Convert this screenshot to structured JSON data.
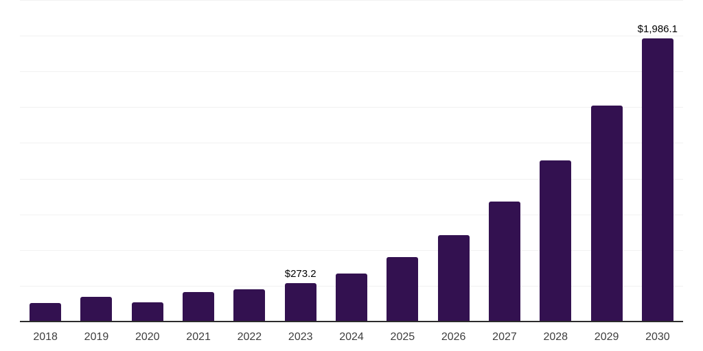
{
  "colors": {
    "bar": "#331150",
    "gridline": "#f1f1f1",
    "axis": "#2b2b2b",
    "tick_label": "#3d3d3d",
    "value_label": "#000000",
    "background": "#ffffff"
  },
  "chart_data": {
    "type": "bar",
    "title": "",
    "xlabel": "",
    "ylabel": "",
    "categories": [
      "2018",
      "2019",
      "2020",
      "2021",
      "2022",
      "2023",
      "2024",
      "2025",
      "2026",
      "2027",
      "2028",
      "2029",
      "2030"
    ],
    "values": [
      136,
      178,
      141,
      213,
      228,
      273.2,
      343,
      455,
      610,
      845,
      1130,
      1515,
      1986.1
    ],
    "value_labels": {
      "2023": "$273.2",
      "2030": "$1,986.1"
    },
    "ylim": [
      0,
      2250
    ],
    "grid_step": 250,
    "grid": true,
    "legend": false,
    "y_tick_labels_visible": false
  }
}
